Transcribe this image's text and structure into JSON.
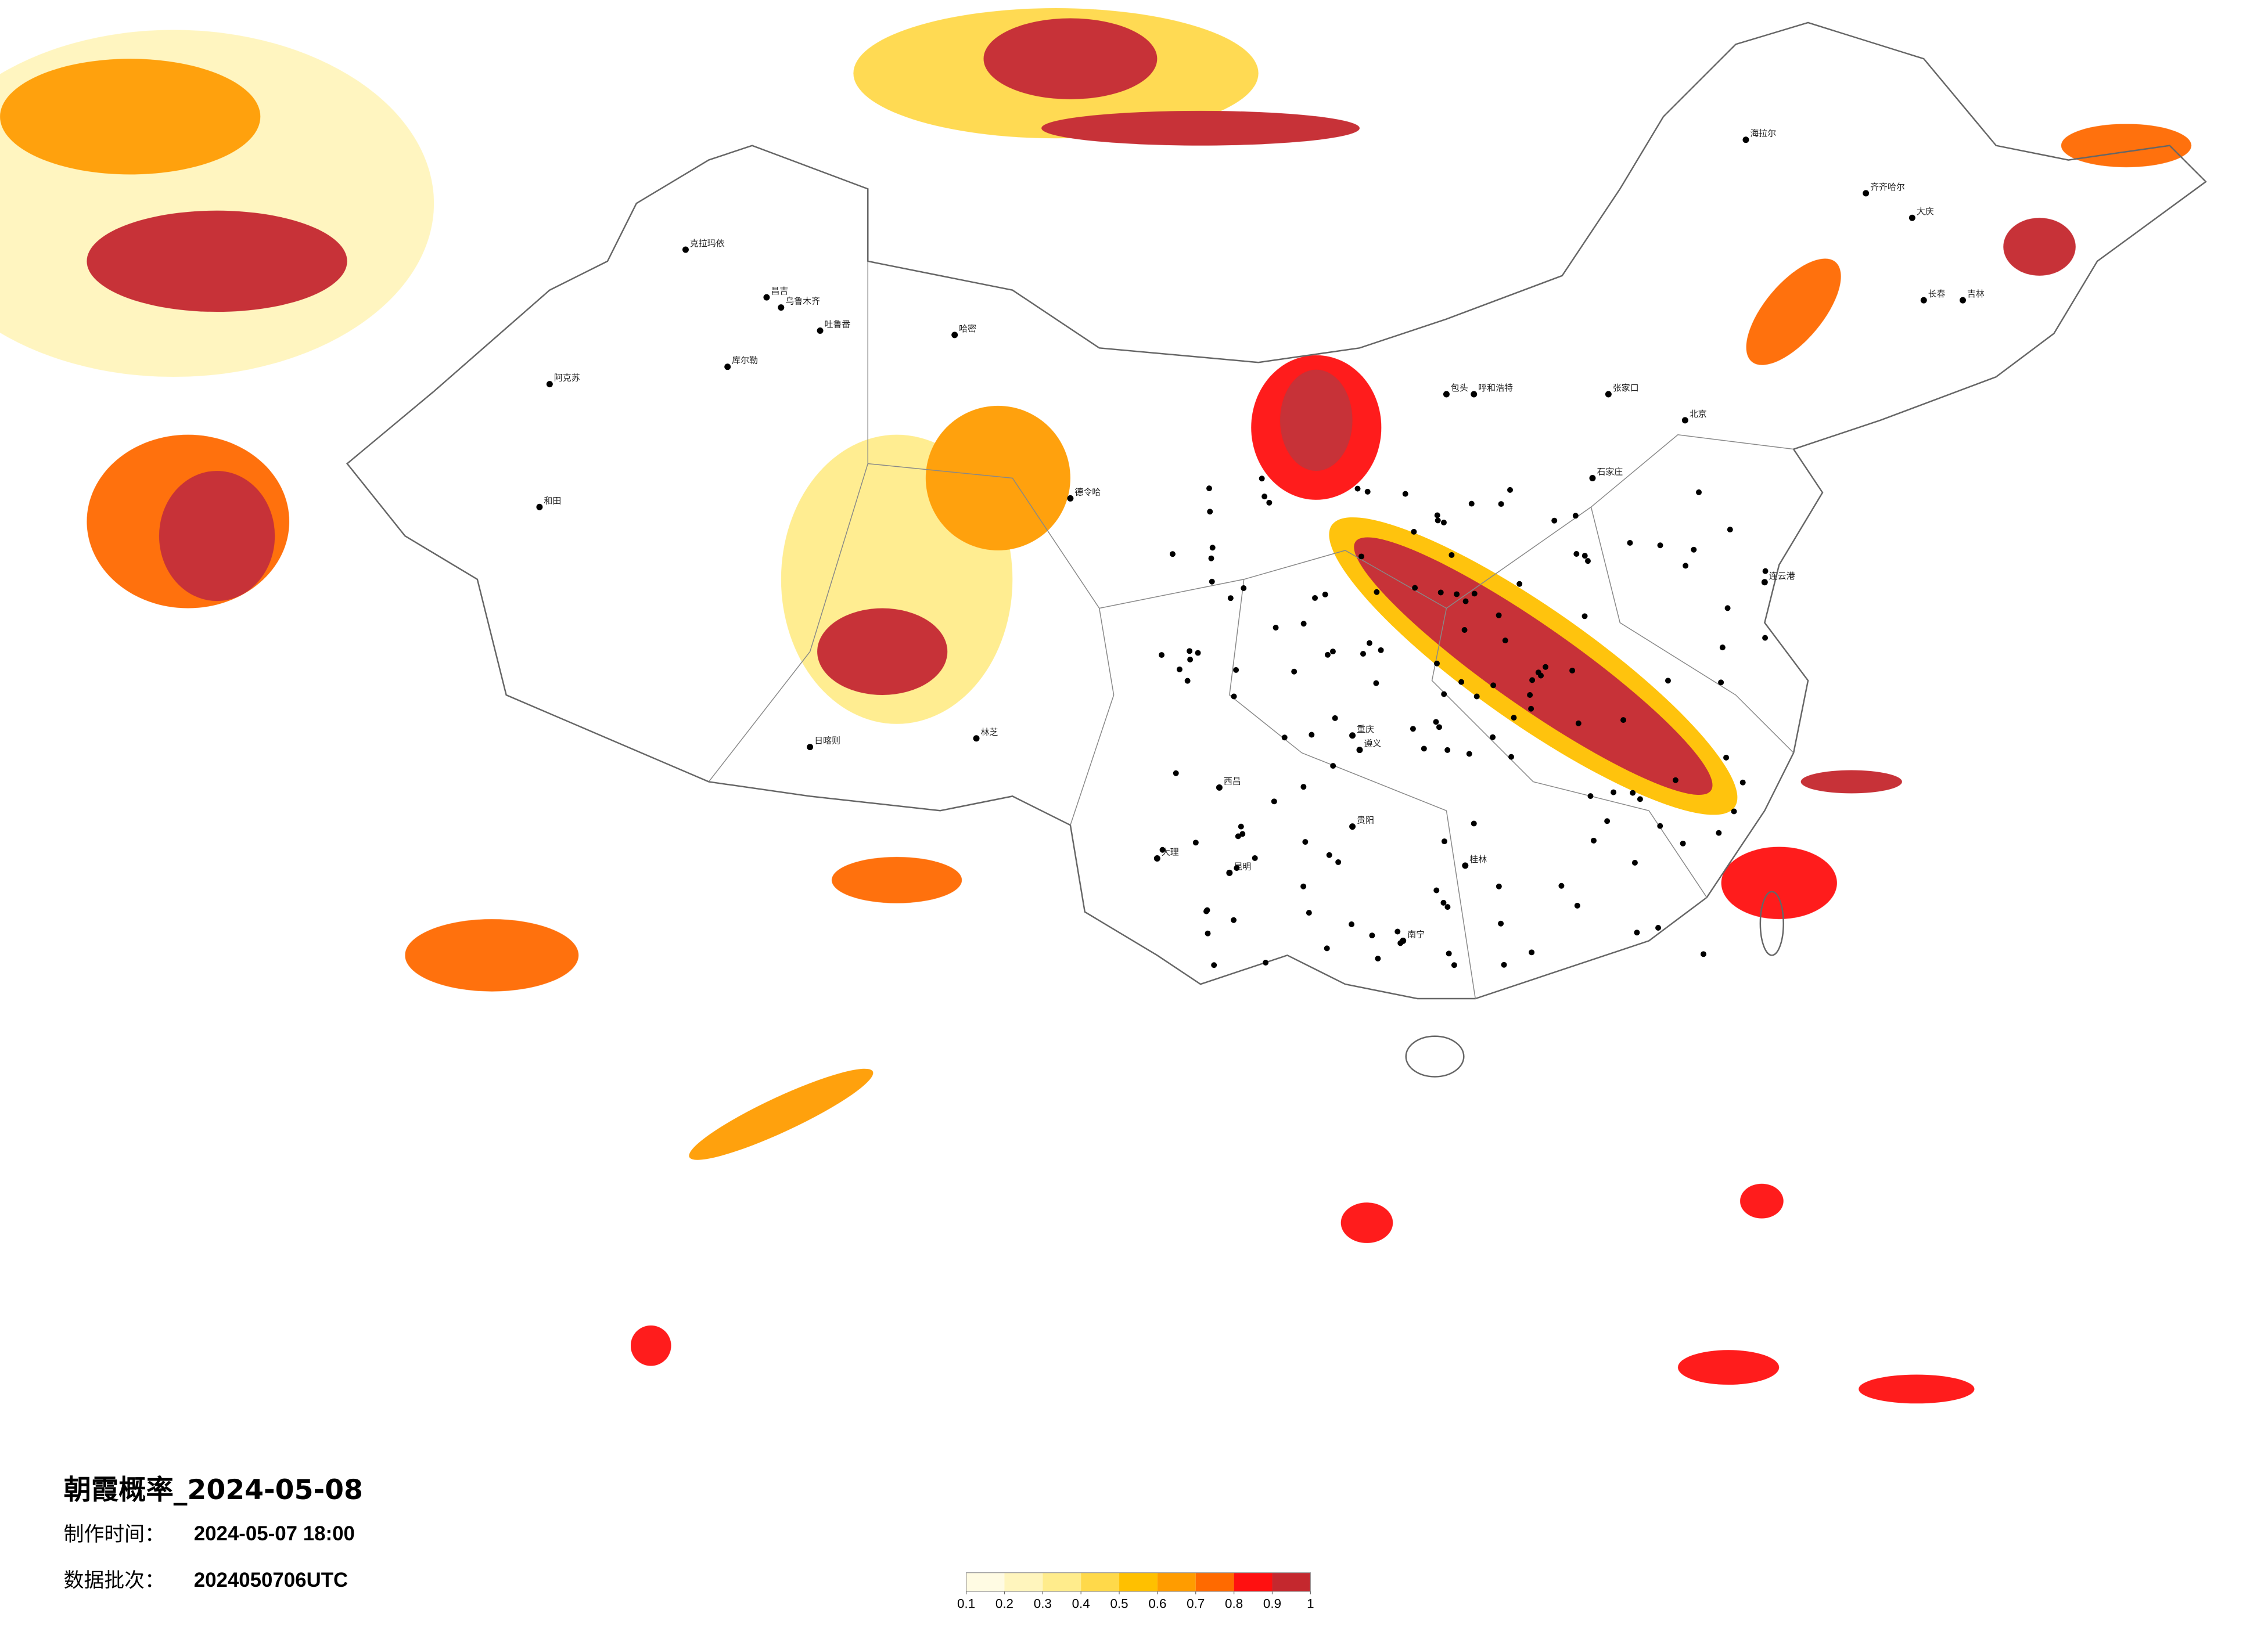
{
  "title": "朝霞概率_2024-05-08",
  "production_time": {
    "label": "制作时间：",
    "value": "2024-05-07 18:00"
  },
  "data_batch": {
    "label": "数据批次：",
    "value": "2024050706UTC"
  },
  "legend": {
    "ticks": [
      0.1,
      0.2,
      0.3,
      0.4,
      0.5,
      0.6,
      0.7,
      0.8,
      0.9,
      1
    ],
    "colors": [
      "#fffbe3",
      "#fff5bd",
      "#ffec8c",
      "#ffd94a",
      "#ffc000",
      "#ff9c00",
      "#ff6a00",
      "#ff1010",
      "#c4282e"
    ]
  },
  "cities": [
    "克拉玛依",
    "昌吉",
    "乌鲁木齐",
    "吐鲁番",
    "哈密",
    "库尔勒",
    "阿克苏",
    "和田",
    "德令哈",
    "日喀则",
    "林芝",
    "北京",
    "呼和浩特",
    "包头",
    "石家庄",
    "张家口",
    "海拉尔",
    "齐齐哈尔",
    "大庆",
    "长春",
    "吉林",
    "连云港",
    "南宁",
    "昆明",
    "西昌",
    "大理",
    "贵阳",
    "桂林",
    "遵义",
    "重庆"
  ]
}
